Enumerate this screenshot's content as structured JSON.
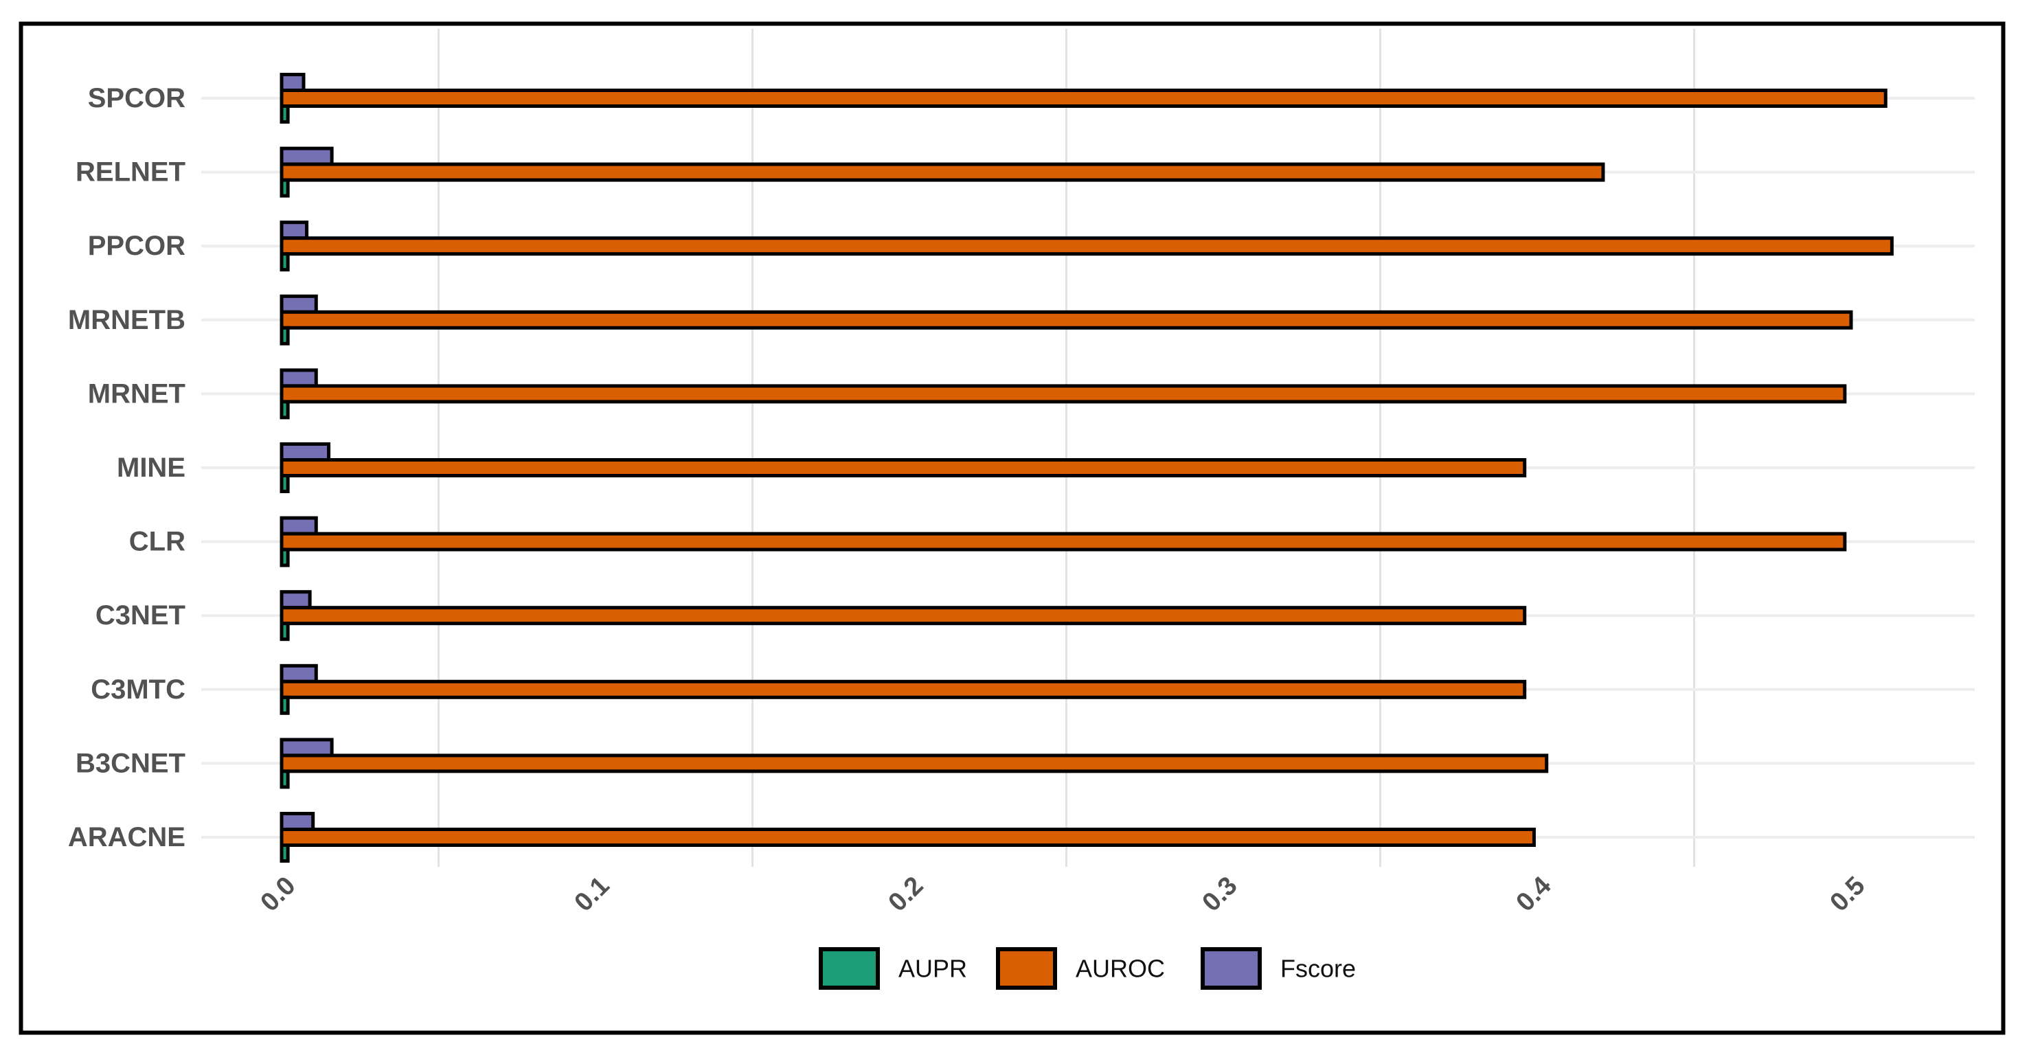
{
  "figure": {
    "background_color": "#ffffff",
    "frame_color": "#000000"
  },
  "chart_data": {
    "type": "bar",
    "orientation": "horizontal",
    "title": "",
    "xlabel": "",
    "ylabel": "",
    "categories": [
      "SPCOR",
      "RELNET",
      "PPCOR",
      "MRNETB",
      "MRNET",
      "MINE",
      "CLR",
      "C3NET",
      "C3MTC",
      "B3CNET",
      "ARACNE"
    ],
    "series": [
      {
        "name": "AUPR",
        "color": "#1b9e77",
        "values": [
          0.002,
          0.002,
          0.002,
          0.002,
          0.002,
          0.002,
          0.002,
          0.002,
          0.002,
          0.002,
          0.002
        ]
      },
      {
        "name": "AUROC",
        "color": "#d95f02",
        "values": [
          0.511,
          0.421,
          0.513,
          0.5,
          0.498,
          0.396,
          0.498,
          0.396,
          0.396,
          0.403,
          0.399
        ]
      },
      {
        "name": "Fscore",
        "color": "#7570b3",
        "values": [
          0.007,
          0.016,
          0.008,
          0.011,
          0.011,
          0.015,
          0.011,
          0.009,
          0.011,
          0.016,
          0.01
        ]
      }
    ],
    "bar_outline_color": "#000000",
    "x_ticks": [
      {
        "value": 0.0,
        "label": "0.0"
      },
      {
        "value": 0.1,
        "label": "0.1"
      },
      {
        "value": 0.2,
        "label": "0.2"
      },
      {
        "value": 0.3,
        "label": "0.3"
      },
      {
        "value": 0.4,
        "label": "0.4"
      },
      {
        "value": 0.5,
        "label": "0.5"
      }
    ],
    "x_tick_angle_deg": -45,
    "xlim": [
      -0.026,
      0.54
    ],
    "minor_gridline_values": [
      0.05,
      0.15,
      0.25,
      0.35,
      0.45
    ],
    "grid": "vertical minor gridlines + horizontal category gridlines",
    "vertical_grid_color": "#e2e2e2",
    "horizontal_grid_color": "#ededed",
    "axis_label_color": "#525252",
    "legend_position": "bottom-center",
    "legend": [
      {
        "label": "AUPR",
        "color": "#1b9e77"
      },
      {
        "label": "AUROC",
        "color": "#d95f02"
      },
      {
        "label": "Fscore",
        "color": "#7570b3"
      }
    ],
    "legend_text_color": "#111111"
  }
}
